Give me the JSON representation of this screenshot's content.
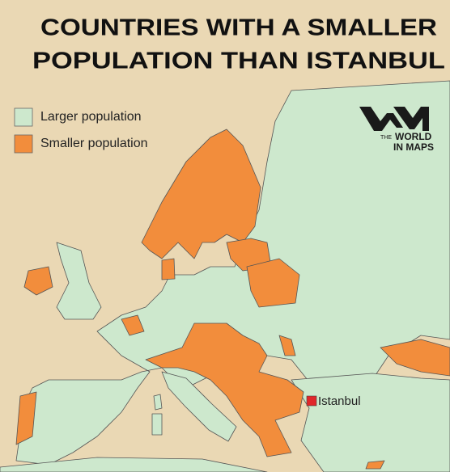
{
  "title": {
    "line1": "COUNTRIES WITH A SMALLER",
    "line2": "POPULATION THAN ISTANBUL"
  },
  "legend": [
    {
      "label": "Larger population",
      "color": "#cde8cd"
    },
    {
      "label": "Smaller population",
      "color": "#f28d3c"
    }
  ],
  "logo": {
    "small": "THE",
    "line1": "WORLD",
    "line2": "IN MAPS"
  },
  "marker": {
    "label": "Istanbul",
    "color": "#e0262a"
  }
}
